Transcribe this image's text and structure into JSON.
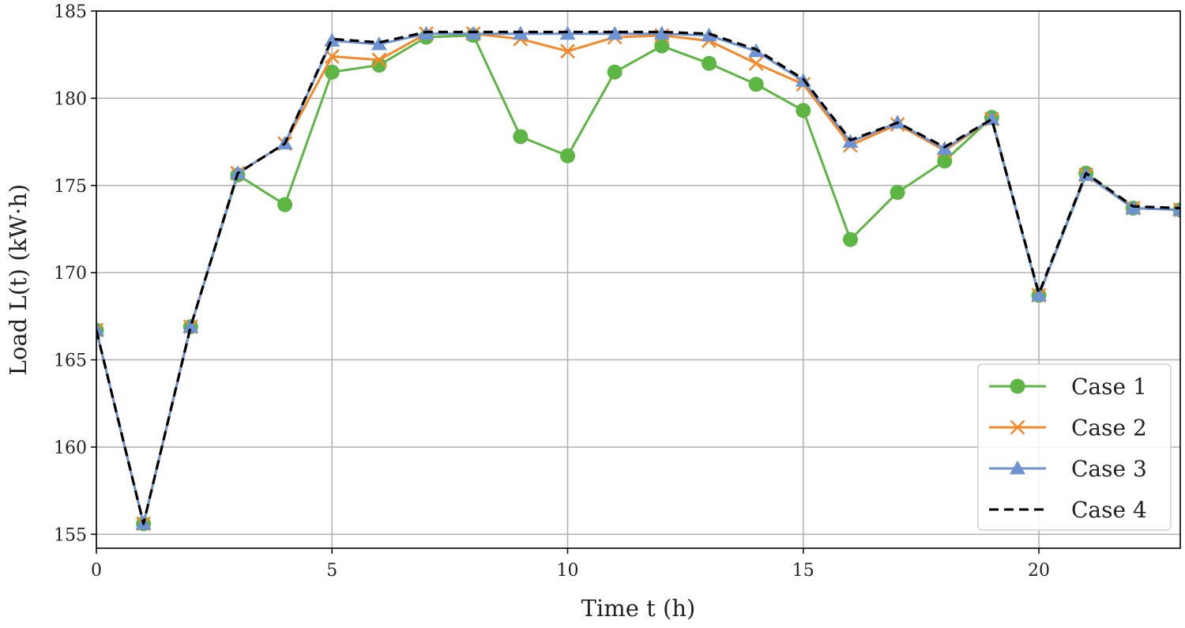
{
  "chart_data": {
    "type": "line",
    "title": "",
    "xlabel": "Time t (h)",
    "ylabel": "Load L(t) (kW·h)",
    "xlim": [
      0,
      23
    ],
    "ylim": [
      154.2,
      185
    ],
    "xticks": [
      0,
      5,
      10,
      15,
      20
    ],
    "yticks": [
      155,
      160,
      165,
      170,
      175,
      180,
      185
    ],
    "grid": true,
    "legend_position": "bottom-right",
    "x": [
      0,
      1,
      2,
      3,
      4,
      5,
      6,
      7,
      8,
      9,
      10,
      11,
      12,
      13,
      14,
      15,
      16,
      17,
      18,
      19,
      20,
      21,
      22,
      23
    ],
    "series": [
      {
        "name": "Case 1",
        "color": "#5db544",
        "marker": "circle",
        "dash": "solid",
        "values": [
          166.7,
          155.6,
          166.9,
          175.6,
          173.9,
          181.5,
          181.9,
          183.5,
          183.6,
          177.8,
          176.7,
          181.5,
          183.0,
          182.0,
          180.8,
          179.3,
          171.9,
          174.6,
          176.4,
          178.9,
          168.7,
          175.7,
          173.7,
          173.6
        ]
      },
      {
        "name": "Case 2",
        "color": "#f5892a",
        "marker": "x",
        "dash": "solid",
        "values": [
          166.7,
          155.6,
          166.9,
          175.7,
          177.4,
          182.4,
          182.2,
          183.7,
          183.7,
          183.4,
          182.7,
          183.5,
          183.6,
          183.3,
          182.0,
          180.8,
          177.3,
          178.5,
          177.0,
          178.8,
          168.7,
          175.6,
          173.7,
          173.6
        ]
      },
      {
        "name": "Case 3",
        "color": "#6d93d2",
        "marker": "triangle",
        "dash": "solid",
        "values": [
          166.7,
          155.6,
          166.9,
          175.7,
          177.4,
          183.3,
          183.1,
          183.7,
          183.7,
          183.7,
          183.7,
          183.7,
          183.7,
          183.6,
          182.7,
          181.0,
          177.5,
          178.6,
          177.1,
          178.8,
          168.7,
          175.6,
          173.7,
          173.6
        ]
      },
      {
        "name": "Case 4",
        "color": "#000000",
        "marker": "none",
        "dash": "dashed",
        "values": [
          166.7,
          155.6,
          166.9,
          175.7,
          177.4,
          183.4,
          183.2,
          183.8,
          183.8,
          183.8,
          183.8,
          183.8,
          183.8,
          183.7,
          182.8,
          181.1,
          177.6,
          178.6,
          177.2,
          178.8,
          168.8,
          175.7,
          173.8,
          173.7
        ]
      }
    ]
  }
}
